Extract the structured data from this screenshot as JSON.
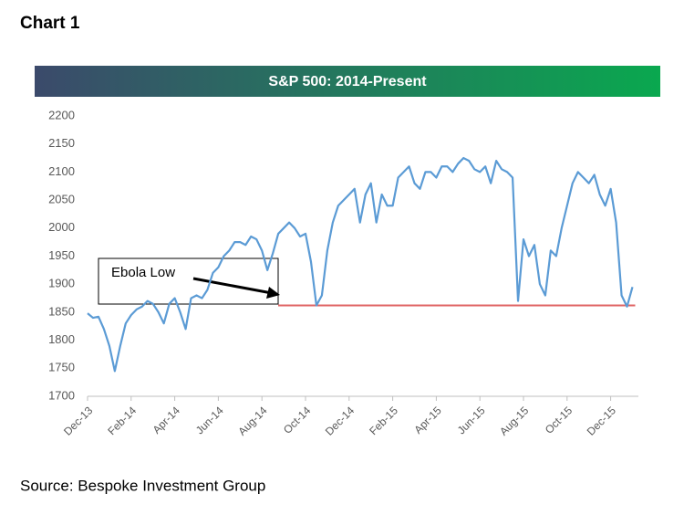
{
  "heading": "Chart 1",
  "source": "Source: Bespoke Investment Group",
  "chart_data": {
    "type": "line",
    "title": "S&P 500: 2014-Present",
    "categories": [
      "Dec-13",
      null,
      null,
      null,
      null,
      null,
      null,
      null,
      "Feb-14",
      null,
      null,
      null,
      null,
      null,
      null,
      null,
      "Apr-14",
      null,
      null,
      null,
      null,
      null,
      null,
      null,
      "Jun-14",
      null,
      null,
      null,
      null,
      null,
      null,
      null,
      "Aug-14",
      null,
      null,
      null,
      null,
      null,
      null,
      null,
      "Oct-14",
      null,
      null,
      null,
      null,
      null,
      null,
      null,
      "Dec-14",
      null,
      null,
      null,
      null,
      null,
      null,
      null,
      "Feb-15",
      null,
      null,
      null,
      null,
      null,
      null,
      null,
      "Apr-15",
      null,
      null,
      null,
      null,
      null,
      null,
      null,
      "Jun-15",
      null,
      null,
      null,
      null,
      null,
      null,
      null,
      "Aug-15",
      null,
      null,
      null,
      null,
      null,
      null,
      null,
      "Oct-15",
      null,
      null,
      null,
      null,
      null,
      null,
      null,
      "Dec-15",
      null,
      null,
      null,
      null
    ],
    "series": [
      {
        "name": "S&P 500",
        "color": "#5b9bd5",
        "values": [
          1848,
          1840,
          1842,
          1820,
          1790,
          1745,
          1790,
          1830,
          1845,
          1855,
          1860,
          1870,
          1865,
          1850,
          1830,
          1865,
          1875,
          1850,
          1820,
          1875,
          1880,
          1875,
          1890,
          1920,
          1930,
          1950,
          1960,
          1975,
          1975,
          1970,
          1985,
          1980,
          1960,
          1925,
          1955,
          1990,
          2000,
          2010,
          2000,
          1985,
          1990,
          1940,
          1862,
          1880,
          1960,
          2010,
          2040,
          2050,
          2060,
          2070,
          2010,
          2060,
          2080,
          2010,
          2060,
          2040,
          2040,
          2090,
          2100,
          2110,
          2080,
          2070,
          2100,
          2100,
          2090,
          2110,
          2110,
          2100,
          2115,
          2125,
          2120,
          2105,
          2100,
          2110,
          2080,
          2120,
          2105,
          2100,
          2090,
          1870,
          1980,
          1950,
          1970,
          1900,
          1880,
          1960,
          1950,
          2000,
          2040,
          2080,
          2100,
          2090,
          2080,
          2095,
          2060,
          2040,
          2070,
          2010,
          1880,
          1860,
          1895
        ]
      }
    ],
    "ylim": [
      1700,
      2200
    ],
    "yticks": [
      1700,
      1750,
      1800,
      1850,
      1900,
      1950,
      2000,
      2050,
      2100,
      2150,
      2200
    ],
    "hline": {
      "value": 1862,
      "color": "#e06666"
    },
    "annotation": "Ebola Low"
  }
}
